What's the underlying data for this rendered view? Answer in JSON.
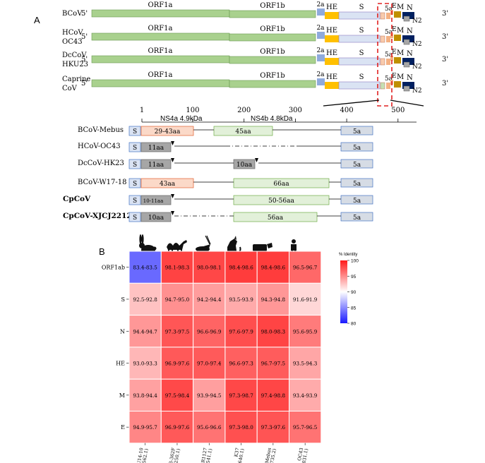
{
  "panel_a": {
    "label": "A",
    "end5": "5'",
    "end3": "3'",
    "genome_rows": [
      {
        "name": "BCoV",
        "name2": ""
      },
      {
        "name": "HCoV",
        "name2": "OC43"
      },
      {
        "name": "DcCoV",
        "name2": "HKU23"
      },
      {
        "name": "Caprine",
        "name2": "CoV"
      }
    ],
    "genes": {
      "orf1a": "ORF1a",
      "orf1b": "ORF1b",
      "g2a": "2a",
      "he": "HE",
      "s": "S",
      "g5a": "5a",
      "e": "E",
      "m": "M",
      "n": "N",
      "n2": "N2"
    },
    "colors": {
      "orf": "#a9d18e",
      "he": "#ffc000",
      "s": "#dae3f3",
      "g2a": "#8faadc",
      "m": "#bf9000",
      "n": "#002060",
      "n2": "#a6a6a6",
      "dash": "#e02020"
    },
    "axis_ticks": [
      "1",
      "100",
      "200",
      "300",
      "400",
      "500"
    ],
    "zoom_labels": {
      "ns4a": "NS4a 4.9kDa",
      "ns4b": "NS4b 4.8kDa"
    },
    "zoom_rows": [
      {
        "name": "BCoV-Mebus",
        "bold": false,
        "seg1": "29-43aa",
        "seg2": "45aa",
        "s": "S",
        "g5a": "5a"
      },
      {
        "name": "HCoV-OC43",
        "bold": false,
        "seg1": "11aa",
        "seg2": "",
        "s": "S",
        "g5a": "5a"
      },
      {
        "name": "DcCoV-HK23",
        "bold": false,
        "seg1": "11aa",
        "seg2": "10aa",
        "s": "S",
        "g5a": "5a"
      },
      {
        "name": "BCoV-W17-18",
        "bold": false,
        "seg1": "43aa",
        "seg2": "66aa",
        "s": "S",
        "g5a": "5a"
      },
      {
        "name": "CpCoV",
        "bold": true,
        "seg1": "10-11aa",
        "seg2": "50-56aa",
        "s": "S",
        "g5a": "5a"
      },
      {
        "name": "CpCoV-XJCJ2212",
        "bold": true,
        "seg1": "10aa",
        "seg2": "56aa",
        "s": "S",
        "g5a": "5a"
      }
    ]
  },
  "panel_b": {
    "label": "B",
    "legend_title": "% Identity",
    "animal_icons": [
      "rabbit-icon",
      "camel-icon",
      "antelope-icon",
      "dog-icon",
      "cow-icon",
      "human-icon"
    ]
  },
  "chart_data": {
    "type": "heatmap",
    "title": "",
    "rows": [
      "ORF1ab",
      "S",
      "N",
      "HE",
      "M",
      "E"
    ],
    "columns": [
      "HKU14-10 (JN874562.1)",
      "HKU23-362F (KF906250.1)",
      "ISR1127 (OM397541.1)",
      "K37 (JX860640.1)",
      "BCoV-Mebus (U00735.2)",
      "OC43 (KX344031.1)"
    ],
    "cells": [
      [
        "83.4-83.5",
        "98.1-98.3",
        "98.0-98.1",
        "98.4-98.6",
        "98.4-98.6",
        "96.5-96.7"
      ],
      [
        "92.5-92.8",
        "94.7-95.0",
        "94.2-94.4",
        "93.5-93.9",
        "94.3-94.8",
        "91.6-91.9"
      ],
      [
        "94.4-94.7",
        "97.3-97.5",
        "96.6-96.9",
        "97.6-97.9",
        "98.0-98.3",
        "95.6-95.9"
      ],
      [
        "93.0-93.3",
        "96.9-97.6",
        "97.0-97.4",
        "96.6-97.3",
        "96.7-97.5",
        "93.5-94.3"
      ],
      [
        "93.8-94.4",
        "97.5-98.4",
        "93.9-94.5",
        "97.3-98.7",
        "97.4-98.8",
        "93.4-93.9"
      ],
      [
        "94.9-95.7",
        "96.9-97.6",
        "95.6-96.6",
        "97.3-98.0",
        "97.3-97.6",
        "95.7-96.5"
      ]
    ],
    "values": [
      [
        83.45,
        98.2,
        98.05,
        98.5,
        98.5,
        96.6
      ],
      [
        92.65,
        94.85,
        94.3,
        93.7,
        94.55,
        91.75
      ],
      [
        94.55,
        97.4,
        96.75,
        97.75,
        98.15,
        95.75
      ],
      [
        93.15,
        97.25,
        97.2,
        96.95,
        97.1,
        93.9
      ],
      [
        94.1,
        97.95,
        94.2,
        98.0,
        98.1,
        93.65
      ],
      [
        95.3,
        97.25,
        96.1,
        97.65,
        97.45,
        96.1
      ]
    ],
    "colorbar": {
      "min": 80,
      "max": 100,
      "ticks": [
        "100",
        "95",
        "90",
        "85",
        "80"
      ],
      "low_color": "#1a1aff",
      "mid_color": "#ffffff",
      "high_color": "#ff1a1a"
    }
  }
}
